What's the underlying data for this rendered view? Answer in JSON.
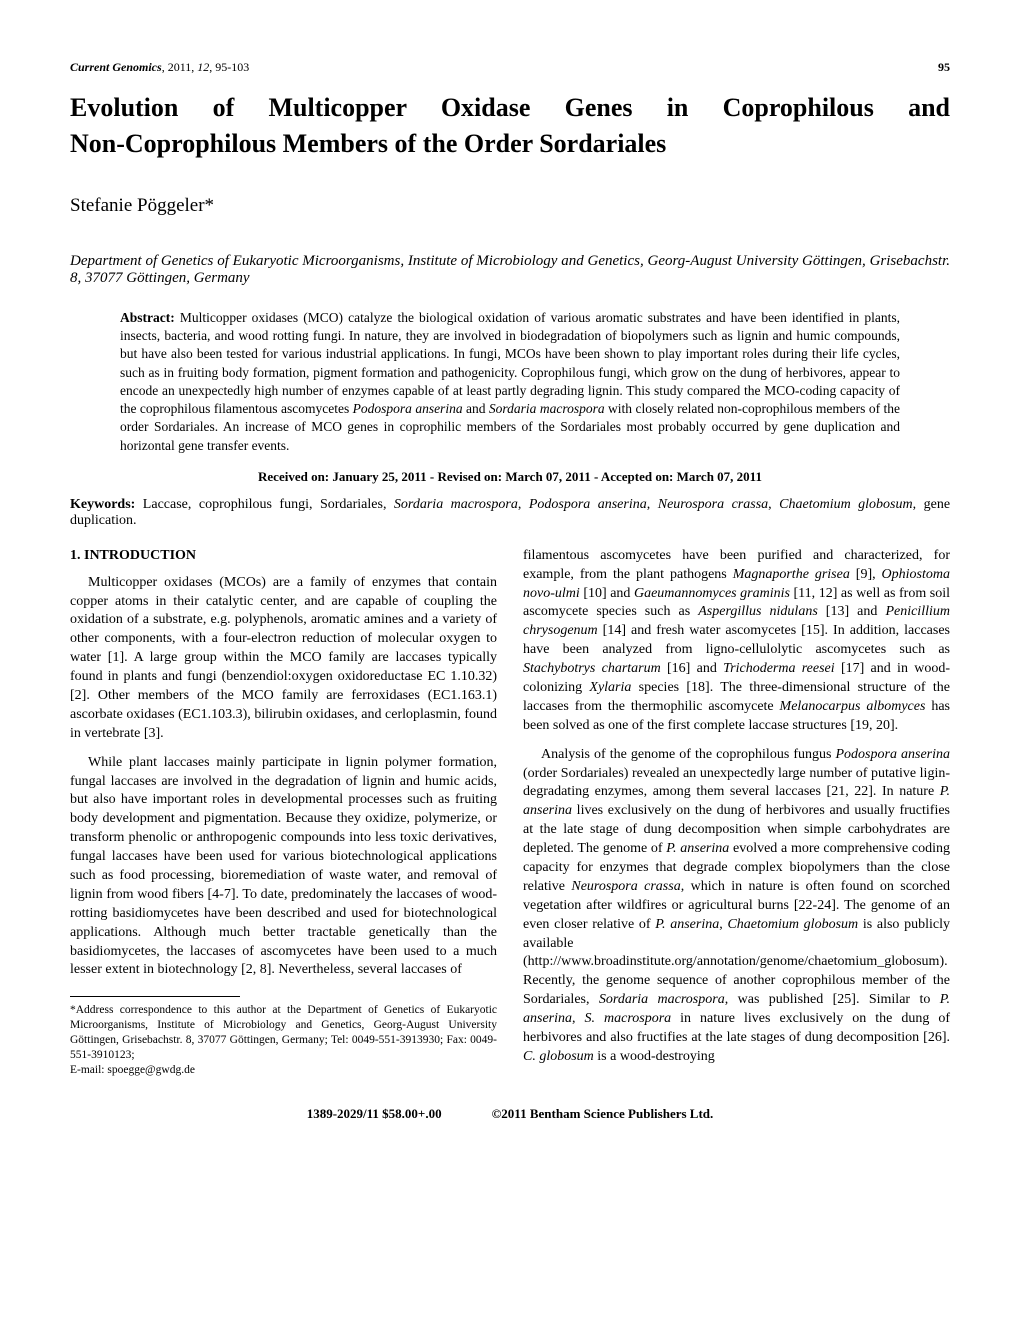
{
  "header": {
    "journal_italic": "Current Genomics",
    "journal_rest": ", 2011, ",
    "volume_italic": "12",
    "pages": ", 95-103",
    "page_number": "95"
  },
  "title_line1": "Evolution of Multicopper Oxidase Genes in Coprophilous and",
  "title_line2": "Non-Coprophilous Members of the Order Sordariales",
  "author": "Stefanie Pöggeler*",
  "affiliation": "Department of Genetics of Eukaryotic Microorganisms, Institute of Microbiology and Genetics, Georg-August University Göttingen, Grisebachstr. 8, 37077 Göttingen, Germany",
  "abstract_label": "Abstract:",
  "abstract_text": " Multicopper oxidases (MCO) catalyze the biological oxidation of various aromatic substrates and have been identified in plants, insects, bacteria, and wood rotting fungi. In nature, they are involved in biodegradation of biopolymers such as lignin and humic compounds, but have also been tested for various industrial applications. In fungi, MCOs have been shown to play important roles during their life cycles, such as in fruiting body formation, pigment formation and pathogenicity. Coprophilous fungi, which grow on the dung of herbivores, appear to encode an unexpectedly high number of enzymes capable of at least partly degrading lignin. This study compared the MCO-coding capacity of the coprophilous filamentous ascomycetes ",
  "abstract_ital1": "Podospora anserina",
  "abstract_mid1": " and ",
  "abstract_ital2": "Sordaria macrospora",
  "abstract_text2": " with closely related non-coprophilous members of the order Sordariales. An increase of MCO genes in coprophilic members of the Sordariales most probably occurred by gene duplication and horizontal gene transfer events.",
  "dates": "Received on: January 25, 2011 - Revised on: March 07, 2011 - Accepted on: March 07, 2011",
  "keywords_label": "Keywords:",
  "keywords_plain1": " Laccase, coprophilous fungi, Sordariales, ",
  "keywords_ital1": "Sordaria macrospora",
  "keywords_sep": ", ",
  "keywords_ital2": "Podospora anserina",
  "keywords_ital3": "Neurospora crassa",
  "keywords_ital4": "Chaetomium globosum",
  "keywords_end": ", gene duplication.",
  "section1": "1. INTRODUCTION",
  "col1_p1": "Multicopper oxidases (MCOs) are a family of enzymes that contain copper atoms in their catalytic center, and are capable of coupling the oxidation of a substrate, e.g. polyphenols, aromatic amines and a variety of other components, with a four-electron reduction of molecular oxygen to water [1]. A large group within the MCO family are laccases typically found in plants and fungi (benzendiol:oxygen oxidoreductase EC 1.10.32) [2]. Other members of the MCO family are ferroxidases (EC1.163.1) ascorbate oxidases (EC1.103.3), bilirubin oxidases, and cerloplasmin, found in vertebrate [3].",
  "col1_p2": "While plant laccases mainly participate in lignin polymer formation, fungal laccases are involved in the degradation of lignin and humic acids, but also have important roles in developmental processes such as fruiting body development and pigmentation. Because they oxidize, polymerize, or transform phenolic or anthropogenic compounds into less toxic derivatives, fungal laccases have been used for various biotechnological applications such as food processing, bioremediation of waste water, and removal of lignin from wood fibers [4-7]. To date, predominately the laccases of wood-rotting basidiomycetes have been described and used for biotechnological applications. Although much better tractable genetically than the basidiomycetes, the laccases of ascomycetes have been used to a much lesser extent in biotechnology [2, 8]. Nevertheless, several laccases of",
  "corr_text": "*Address correspondence to this author at the Department of Genetics of Eukaryotic Microorganisms, Institute of Microbiology and Genetics, Georg-August University Göttingen, Grisebachstr. 8, 37077 Göttingen, Germany; Tel: 0049-551-3913930; Fax: 0049-551-3910123;",
  "corr_email": "E-mail: spoegge@gwdg.de",
  "col2_p1_a": "filamentous ascomycetes have been purified and characterized, for example, from the plant pathogens ",
  "col2_p1_i1": "Magnaporthe grisea",
  "col2_p1_b": " [9], ",
  "col2_p1_i2": "Ophiostoma novo-ulmi",
  "col2_p1_c": " [10] and ",
  "col2_p1_i3": "Gaeumannomyces graminis",
  "col2_p1_d": " [11, 12] as well as from soil ascomycete species such as ",
  "col2_p1_i4": "Aspergillus nidulans",
  "col2_p1_e": " [13] and ",
  "col2_p1_i5": "Penicillium chrysogenum",
  "col2_p1_f": " [14] and fresh water ascomycetes [15]. In addition, laccases have been analyzed from ligno-cellulolytic ascomycetes such as ",
  "col2_p1_i6": "Stachybotrys chartarum",
  "col2_p1_g": " [16] and ",
  "col2_p1_i7": "Trichoderma reesei",
  "col2_p1_h": " [17] and in wood-colonizing ",
  "col2_p1_i8": "Xylaria",
  "col2_p1_i": " species [18]. The three-dimensional structure of the laccases from the thermophilic ascomycete ",
  "col2_p1_i9": "Melanocarpus albomyces",
  "col2_p1_j": " has been solved as one of the first complete laccase structures [19, 20].",
  "col2_p2_a": "Analysis of the genome of the coprophilous fungus ",
  "col2_p2_i1": "Podospora anserina",
  "col2_p2_b": " (order Sordariales) revealed an unexpectedly large number of putative ligin-degradating enzymes, among them several laccases [21, 22]. In nature ",
  "col2_p2_i2": "P. anserina",
  "col2_p2_c": " lives exclusively on the dung of herbivores and usually fructifies at the late stage of dung decomposition when simple carbohydrates are depleted. The genome of ",
  "col2_p2_i3": "P. anserina",
  "col2_p2_d": " evolved a more comprehensive coding capacity for enzymes that degrade complex biopolymers than the close relative ",
  "col2_p2_i4": "Neurospora crassa",
  "col2_p2_e": ", which in nature is often found on scorched vegetation after wildfires or agricultural burns [22-24]. The genome of an even closer relative of ",
  "col2_p2_i5": "P. anserina",
  "col2_p2_f": ", ",
  "col2_p2_i6": "Chaetomium globosum",
  "col2_p2_g": " is also publicly available (http://www.broadinstitute.org/annotation/genome/chaetomium_globosum). Recently, the genome sequence of another coprophilous member of the Sordariales, ",
  "col2_p2_i7": "Sordaria macrospora",
  "col2_p2_h": ", was published [25]. Similar to ",
  "col2_p2_i8": "P. anserina",
  "col2_p2_i": ", ",
  "col2_p2_i9": "S. macrospora",
  "col2_p2_j": " in nature lives exclusively on the dung of herbivores and also fructifies at the late stages of dung decomposition [26]. ",
  "col2_p2_i10": "C. globosum",
  "col2_p2_k": " is a wood-destroying",
  "footer_left": "1389-2029/11 $58.00+.00",
  "footer_right": "©2011 Bentham Science Publishers Ltd."
}
